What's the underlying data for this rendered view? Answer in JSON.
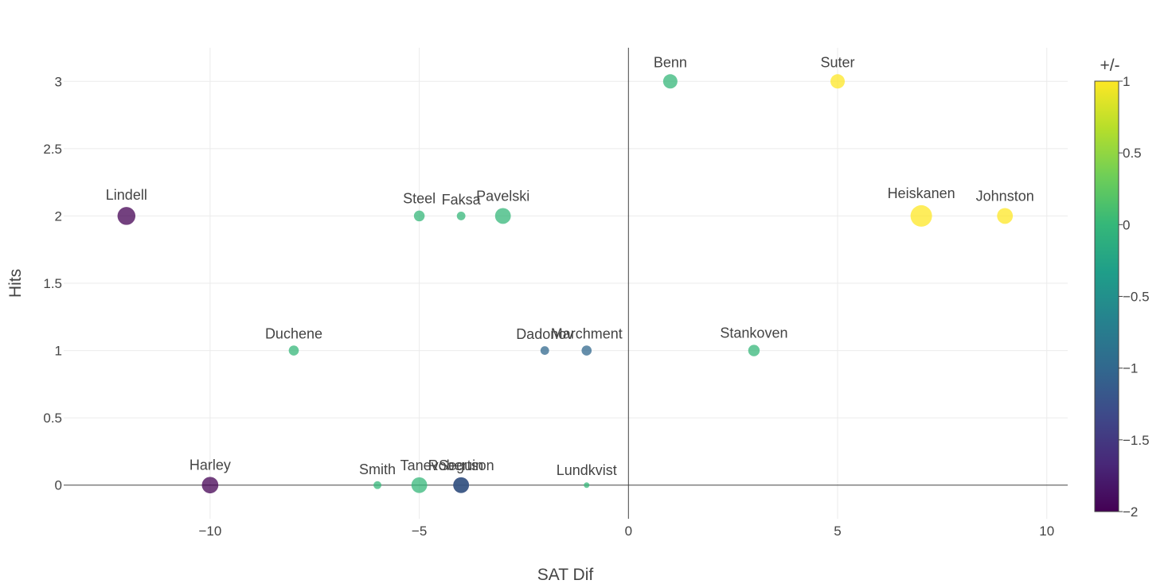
{
  "chart_data": {
    "type": "scatter",
    "xlabel": "SAT Dif",
    "ylabel": "Hits",
    "xlim": [
      -13.5,
      10.5
    ],
    "ylim": [
      -0.25,
      3.25
    ],
    "x_ticks": [
      -10,
      -5,
      0,
      5,
      10
    ],
    "x_tick_labels": [
      "−10",
      "−5",
      "0",
      "5",
      "10"
    ],
    "y_ticks": [
      0,
      0.5,
      1,
      1.5,
      2,
      2.5,
      3
    ],
    "y_tick_labels": [
      "0",
      "0.5",
      "1",
      "1.5",
      "2",
      "2.5",
      "3"
    ],
    "grid": true,
    "marker_opacity": 0.75,
    "colorscale": "Viridis",
    "colorbar": {
      "title": "+/-",
      "range": [
        -2,
        1
      ],
      "ticks": [
        1,
        0.5,
        0,
        -0.5,
        -1,
        -1.5,
        -2
      ],
      "tick_labels": [
        "1",
        "0.5",
        "0",
        "−0.5",
        "−1",
        "−1.5",
        "−2"
      ]
    },
    "points": [
      {
        "name": "Benn",
        "x": 1,
        "y": 3,
        "color_value": 0,
        "size": 2
      },
      {
        "name": "Suter",
        "x": 5,
        "y": 3,
        "color_value": 1,
        "size": 2
      },
      {
        "name": "Lindell",
        "x": -12,
        "y": 2,
        "color_value": -2,
        "size": 2.5
      },
      {
        "name": "Steel",
        "x": -5,
        "y": 2,
        "color_value": 0,
        "size": 1.5
      },
      {
        "name": "Faksa",
        "x": -4,
        "y": 2,
        "color_value": 0,
        "size": 1.2
      },
      {
        "name": "Pavelski",
        "x": -3,
        "y": 2,
        "color_value": 0,
        "size": 2.2
      },
      {
        "name": "Heiskanen",
        "x": 7,
        "y": 2,
        "color_value": 1,
        "size": 3
      },
      {
        "name": "Johnston",
        "x": 9,
        "y": 2,
        "color_value": 1,
        "size": 2.2
      },
      {
        "name": "Duchene",
        "x": -8,
        "y": 1,
        "color_value": 0,
        "size": 1.4
      },
      {
        "name": "Dadonov",
        "x": -2,
        "y": 1,
        "color_value": -1,
        "size": 1.2
      },
      {
        "name": "Marchment",
        "x": -1,
        "y": 1,
        "color_value": -1,
        "size": 1.4
      },
      {
        "name": "Stankoven",
        "x": 3,
        "y": 1,
        "color_value": 0,
        "size": 1.6
      },
      {
        "name": "Harley",
        "x": -10,
        "y": 0,
        "color_value": -2,
        "size": 2.3
      },
      {
        "name": "Smith",
        "x": -6,
        "y": 0,
        "color_value": 0,
        "size": 1.1
      },
      {
        "name": "Tanev",
        "x": -5,
        "y": 0,
        "color_value": 0,
        "size": 2.2
      },
      {
        "name": "Seguin",
        "x": -4,
        "y": 0,
        "color_value": -2,
        "size": 2.2
      },
      {
        "name": "Robertson",
        "x": -4,
        "y": 0,
        "color_value": -1,
        "size": 2.2
      },
      {
        "name": "Lundkvist",
        "x": -1,
        "y": 0,
        "color_value": 0,
        "size": 0.3
      }
    ]
  }
}
